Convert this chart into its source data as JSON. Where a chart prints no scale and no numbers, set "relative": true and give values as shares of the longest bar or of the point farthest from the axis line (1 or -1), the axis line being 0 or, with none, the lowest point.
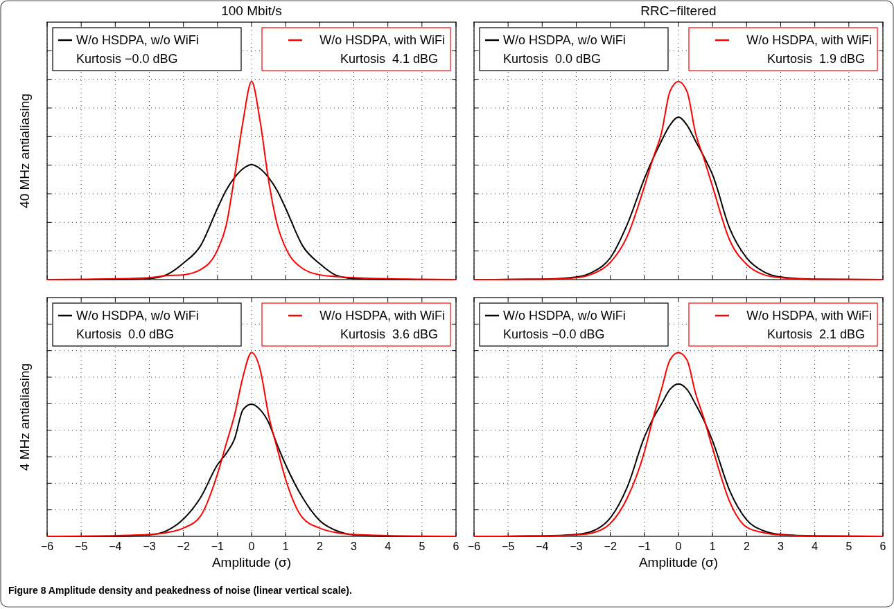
{
  "chart_data": [
    {
      "type": "line",
      "relative": true,
      "title": "100 Mbit/s",
      "ylabel": "40 MHz antialiasing",
      "xlim": [
        -6,
        6
      ],
      "xticks": [
        -6,
        -5,
        -4,
        -3,
        -2,
        -1,
        0,
        1,
        2,
        3,
        4,
        5,
        6
      ],
      "tick_labels": false,
      "grid": true,
      "legend": "top",
      "x": [
        -6,
        -4,
        -3,
        -2.5,
        -2,
        -1.5,
        -1,
        -0.75,
        -0.5,
        -0.25,
        0,
        0.25,
        0.5,
        0.75,
        1,
        1.5,
        2,
        2.5,
        3,
        4,
        6
      ],
      "annotations": [
        "Kurtosis −0.0 dBG",
        "Kurtosis  4.1 dBG"
      ],
      "series": [
        {
          "name": "W/o HSDPA, w/o WiFi",
          "color": "#000000",
          "values": [
            0,
            0,
            0.005,
            0.024,
            0.083,
            0.17,
            0.36,
            0.45,
            0.515,
            0.56,
            0.58,
            0.56,
            0.515,
            0.45,
            0.36,
            0.17,
            0.08,
            0.02,
            0.005,
            0,
            0
          ]
        },
        {
          "name": "W/o HSDPA, with WiFi",
          "color": "#ff0000",
          "values": [
            0,
            0.004,
            0.01,
            0.02,
            0.024,
            0.05,
            0.15,
            0.27,
            0.52,
            0.8,
            1,
            0.8,
            0.5,
            0.28,
            0.16,
            0.056,
            0.024,
            0.015,
            0.01,
            0.004,
            0
          ]
        }
      ]
    },
    {
      "type": "line",
      "relative": true,
      "title": "RRC−filtered",
      "xlim": [
        -6,
        6
      ],
      "xticks": [
        -6,
        -5,
        -4,
        -3,
        -2,
        -1,
        0,
        1,
        2,
        3,
        4,
        5,
        6
      ],
      "tick_labels": false,
      "grid": true,
      "legend": "top",
      "x": [
        -6,
        -4,
        -3,
        -2.5,
        -2,
        -1.5,
        -1,
        -0.75,
        -0.5,
        -0.25,
        0,
        0.25,
        0.5,
        0.75,
        1,
        1.5,
        2,
        2.5,
        3,
        4,
        6
      ],
      "annotations": [
        "Kurtosis  0.0 dBG",
        "Kurtosis  1.9 dBG"
      ],
      "series": [
        {
          "name": "W/o HSDPA, w/o WiFi",
          "color": "#000000",
          "values": [
            0,
            0.002,
            0.013,
            0.04,
            0.11,
            0.28,
            0.51,
            0.61,
            0.7,
            0.78,
            0.82,
            0.78,
            0.7,
            0.62,
            0.53,
            0.26,
            0.11,
            0.04,
            0.013,
            0.002,
            0
          ]
        },
        {
          "name": "W/o HSDPA, with WiFi",
          "color": "#ff0000",
          "values": [
            0,
            0.002,
            0.01,
            0.03,
            0.087,
            0.22,
            0.47,
            0.61,
            0.74,
            0.95,
            1,
            0.95,
            0.74,
            0.61,
            0.47,
            0.2,
            0.077,
            0.025,
            0.01,
            0.002,
            0
          ]
        }
      ]
    },
    {
      "type": "line",
      "relative": true,
      "ylabel": "4 MHz antialiasing",
      "xlabel": "Amplitude (σ)",
      "xlim": [
        -6,
        6
      ],
      "xticks": [
        {
          "value": -6,
          "label": "−6"
        },
        {
          "value": -5,
          "label": "−5"
        },
        {
          "value": -4,
          "label": "−4"
        },
        {
          "value": -3,
          "label": "−3"
        },
        {
          "value": -2,
          "label": "−2"
        },
        {
          "value": -1,
          "label": "−1"
        },
        0,
        1,
        2,
        3,
        4,
        5,
        6
      ],
      "tick_labels": "x",
      "grid": true,
      "legend": "top",
      "x": [
        -6,
        -4,
        -3,
        -2.5,
        -2,
        -1.5,
        -1,
        -0.75,
        -0.5,
        -0.25,
        0,
        0.25,
        0.5,
        0.75,
        1,
        1.5,
        2,
        2.5,
        3,
        4,
        6
      ],
      "annotations": [
        "Kurtosis  0.0 dBG",
        "Kurtosis  3.6 dBG",
        "Figure 8 Amplitude density and peakedness of noise (linear vertical scale)."
      ],
      "series": [
        {
          "name": "W/o HSDPA, w/o WiFi",
          "color": "#000000",
          "values": [
            0,
            0,
            0.008,
            0.03,
            0.094,
            0.21,
            0.39,
            0.45,
            0.53,
            0.69,
            0.72,
            0.69,
            0.62,
            0.5,
            0.39,
            0.21,
            0.086,
            0.03,
            0.008,
            0,
            0
          ]
        },
        {
          "name": "W/o HSDPA, with WiFi",
          "color": "#ff0000",
          "values": [
            0,
            0.004,
            0.01,
            0.02,
            0.045,
            0.11,
            0.34,
            0.5,
            0.66,
            0.87,
            1,
            0.91,
            0.66,
            0.48,
            0.31,
            0.1,
            0.045,
            0.02,
            0.01,
            0.004,
            0
          ]
        }
      ]
    },
    {
      "type": "line",
      "relative": true,
      "xlabel": "Amplitude (σ)",
      "xlim": [
        -6,
        6
      ],
      "xticks": [
        {
          "value": -6,
          "label": "−6"
        },
        {
          "value": -5,
          "label": "−5"
        },
        {
          "value": -4,
          "label": "−4"
        },
        {
          "value": -3,
          "label": "−3"
        },
        {
          "value": -2,
          "label": "−2"
        },
        {
          "value": -1,
          "label": "−1"
        },
        0,
        1,
        2,
        3,
        4,
        5,
        6
      ],
      "tick_labels": "x",
      "grid": true,
      "legend": "top",
      "x": [
        -6,
        -4,
        -3,
        -2.5,
        -2,
        -1.5,
        -1,
        -0.75,
        -0.5,
        -0.25,
        0,
        0.25,
        0.5,
        0.75,
        1,
        1.5,
        2,
        2.5,
        3,
        4,
        6
      ],
      "annotations": [
        "Kurtosis −0.0 dBG",
        "Kurtosis  2.1 dBG"
      ],
      "series": [
        {
          "name": "W/o HSDPA, w/o WiFi",
          "color": "#000000",
          "values": [
            0,
            0.002,
            0.01,
            0.03,
            0.1,
            0.27,
            0.54,
            0.64,
            0.72,
            0.8,
            0.83,
            0.8,
            0.72,
            0.63,
            0.52,
            0.25,
            0.09,
            0.03,
            0.01,
            0.002,
            0
          ]
        },
        {
          "name": "W/o HSDPA, with WiFi",
          "color": "#ff0000",
          "values": [
            0,
            0.002,
            0.008,
            0.02,
            0.07,
            0.21,
            0.46,
            0.64,
            0.8,
            0.96,
            1,
            0.96,
            0.78,
            0.64,
            0.48,
            0.19,
            0.05,
            0.02,
            0.008,
            0.002,
            0
          ]
        }
      ]
    }
  ]
}
